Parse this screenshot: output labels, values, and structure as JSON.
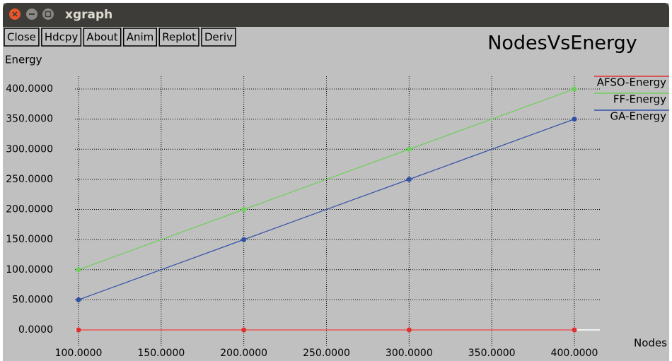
{
  "window": {
    "title": "xgraph"
  },
  "toolbar": {
    "buttons": [
      "Close",
      "Hdcpy",
      "About",
      "Anim",
      "Replot",
      "Deriv"
    ]
  },
  "chart_data": {
    "type": "line",
    "title": "NodesVsEnergy",
    "y_label": "Energy",
    "x_label": "Nodes",
    "x": [
      100,
      200,
      300,
      400
    ],
    "series": [
      {
        "name": "AFSO-Energy",
        "color": "#e03030",
        "values": [
          0,
          0,
          0,
          0
        ]
      },
      {
        "name": "FF-Energy",
        "color": "#6ccf5a",
        "values": [
          100,
          200,
          300,
          400
        ]
      },
      {
        "name": "GA-Energy",
        "color": "#3050a8",
        "values": [
          50,
          150,
          250,
          350
        ]
      }
    ],
    "xlim": [
      100,
      400
    ],
    "xticks": [
      {
        "value": 100,
        "label": "100.0000"
      },
      {
        "value": 150,
        "label": "150.0000"
      },
      {
        "value": 200,
        "label": "200.0000"
      },
      {
        "value": 250,
        "label": "250.0000"
      },
      {
        "value": 300,
        "label": "300.0000"
      },
      {
        "value": 350,
        "label": "350.0000"
      },
      {
        "value": 400,
        "label": "400.0000"
      }
    ],
    "ylim": [
      0,
      400
    ],
    "yticks": [
      {
        "value": 0,
        "label": "0.0000"
      },
      {
        "value": 50,
        "label": "50.0000"
      },
      {
        "value": 100,
        "label": "100.0000"
      },
      {
        "value": 150,
        "label": "150.0000"
      },
      {
        "value": 200,
        "label": "200.0000"
      },
      {
        "value": 250,
        "label": "250.0000"
      },
      {
        "value": 300,
        "label": "300.0000"
      },
      {
        "value": 350,
        "label": "350.0000"
      },
      {
        "value": 400,
        "label": "400.0000"
      }
    ],
    "grid": true
  }
}
